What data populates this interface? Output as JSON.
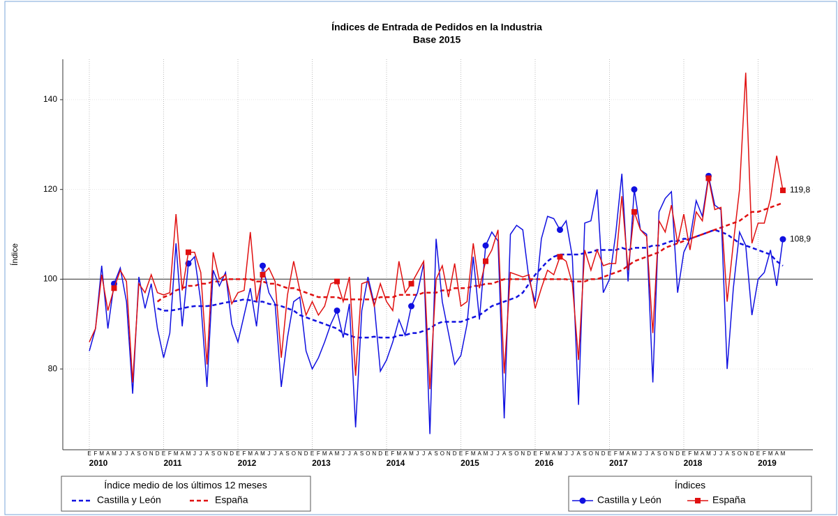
{
  "chart_data": {
    "type": "line",
    "title": "Índices de Entrada de Pedidos en la Industria",
    "subtitle": "Base 2015",
    "ylabel": "Índice",
    "ylim": [
      62,
      149
    ],
    "yticks": [
      80,
      100,
      120,
      140
    ],
    "reference_line": 100,
    "grid": true,
    "categories": [
      "E",
      "F",
      "M",
      "A",
      "M",
      "J",
      "J",
      "A",
      "S",
      "O",
      "N",
      "D",
      "E",
      "F",
      "M",
      "A",
      "M",
      "J",
      "J",
      "A",
      "S",
      "O",
      "N",
      "D",
      "E",
      "F",
      "M",
      "A",
      "M",
      "J",
      "J",
      "A",
      "S",
      "O",
      "N",
      "D",
      "E",
      "F",
      "M",
      "A",
      "M",
      "J",
      "J",
      "A",
      "S",
      "O",
      "N",
      "D",
      "E",
      "F",
      "M",
      "A",
      "M",
      "J",
      "J",
      "A",
      "S",
      "O",
      "N",
      "D",
      "E",
      "F",
      "M",
      "A",
      "M",
      "J",
      "J",
      "A",
      "S",
      "O",
      "N",
      "D",
      "E",
      "F",
      "M",
      "A",
      "M",
      "J",
      "J",
      "A",
      "S",
      "O",
      "N",
      "D",
      "E",
      "F",
      "M",
      "A",
      "M",
      "J",
      "J",
      "A",
      "S",
      "O",
      "N",
      "D",
      "E",
      "F",
      "M",
      "A",
      "M",
      "J",
      "J",
      "A",
      "S",
      "O",
      "N",
      "D",
      "E",
      "F",
      "M",
      "A",
      "M"
    ],
    "years": [
      "2010",
      "2011",
      "2012",
      "2013",
      "2014",
      "2015",
      "2016",
      "2017",
      "2018",
      "2019"
    ],
    "legend_title": "Índices",
    "series": [
      {
        "name": "Castilla y León",
        "color": "#1010e0",
        "marker": "circle",
        "values": [
          84,
          89,
          103,
          89,
          99,
          102.5,
          95,
          74.5,
          100.5,
          93.5,
          99,
          89,
          82.5,
          88,
          108,
          89.5,
          103.5,
          105,
          95,
          76,
          102,
          98.5,
          101.5,
          90,
          86,
          92,
          98,
          89.5,
          103,
          97,
          94.5,
          76,
          87,
          95,
          96,
          84,
          80,
          82.5,
          86,
          90,
          93,
          87,
          94.5,
          67,
          93,
          100.5,
          94.5,
          79.5,
          82,
          86,
          91,
          87.5,
          94,
          97,
          103.5,
          65.5,
          109,
          95,
          88,
          81,
          83,
          90,
          105,
          91,
          107.5,
          110.5,
          108.5,
          69,
          110,
          112,
          111,
          100,
          95,
          109,
          114,
          113.5,
          111,
          113,
          105,
          72,
          112.5,
          113,
          120,
          97,
          100,
          110,
          123.5,
          99.5,
          120,
          111,
          110,
          77,
          115,
          118,
          119.5,
          97,
          106,
          109,
          117.5,
          114,
          123,
          116.5,
          115.5,
          80,
          98,
          110.5,
          107.5,
          92,
          100,
          101.5,
          106.5,
          98.5,
          108.9
        ],
        "value_labels": [
          null,
          null,
          null,
          null,
          null,
          null,
          null,
          null,
          null,
          null,
          null,
          null,
          null,
          null,
          null,
          null,
          null,
          null,
          null,
          null,
          null,
          null,
          null,
          null,
          null,
          null,
          null,
          null,
          null,
          null,
          null,
          null,
          null,
          null,
          null,
          null,
          null,
          null,
          null,
          null,
          null,
          null,
          null,
          null,
          null,
          null,
          null,
          null,
          null,
          null,
          null,
          null,
          null,
          null,
          null,
          null,
          null,
          null,
          null,
          null,
          null,
          null,
          null,
          null,
          null,
          null,
          null,
          null,
          null,
          null,
          null,
          null,
          null,
          null,
          null,
          null,
          null,
          null,
          null,
          null,
          null,
          null,
          null,
          null,
          null,
          null,
          null,
          null,
          null,
          null,
          null,
          null,
          null,
          null,
          null,
          null,
          null,
          null,
          null,
          null,
          null,
          null,
          null,
          null,
          null,
          null,
          null,
          null,
          null,
          null,
          null,
          null,
          "108,9"
        ]
      },
      {
        "name": "España",
        "color": "#e01010",
        "marker": "square",
        "values": [
          86,
          89,
          101,
          93,
          98,
          102,
          99.5,
          77,
          99,
          97,
          101,
          97,
          96.5,
          97,
          114.5,
          97.5,
          106,
          106,
          101.5,
          81,
          106,
          100,
          101,
          94.5,
          97,
          97.5,
          110.5,
          95,
          101,
          102.5,
          99.5,
          82.5,
          96.5,
          104,
          97.5,
          92,
          95,
          92,
          94,
          99,
          99.5,
          95,
          100.5,
          78.5,
          99,
          99.5,
          94,
          99,
          95,
          93,
          104,
          97,
          99,
          101.5,
          104,
          75.5,
          100,
          103,
          96,
          103.5,
          94,
          95,
          108,
          98,
          104,
          106.5,
          111,
          79,
          101.5,
          101,
          100.5,
          101,
          93.5,
          98,
          102,
          101,
          105,
          104,
          99,
          82,
          106.5,
          102,
          106.5,
          103,
          103.5,
          103.5,
          118.5,
          102,
          115,
          111,
          109.5,
          88,
          113,
          110.5,
          116.5,
          108,
          114.5,
          106.5,
          115,
          113,
          122.5,
          115.5,
          116,
          95,
          108,
          120,
          146,
          108,
          112.5,
          112.5,
          118,
          127.5,
          119.8
        ],
        "value_labels": [
          null,
          null,
          null,
          null,
          null,
          null,
          null,
          null,
          null,
          null,
          null,
          null,
          null,
          null,
          null,
          null,
          null,
          null,
          null,
          null,
          null,
          null,
          null,
          null,
          null,
          null,
          null,
          null,
          null,
          null,
          null,
          null,
          null,
          null,
          null,
          null,
          null,
          null,
          null,
          null,
          null,
          null,
          null,
          null,
          null,
          null,
          null,
          null,
          null,
          null,
          null,
          null,
          null,
          null,
          null,
          null,
          null,
          null,
          null,
          null,
          null,
          null,
          null,
          null,
          null,
          null,
          null,
          null,
          null,
          null,
          null,
          null,
          null,
          null,
          null,
          null,
          null,
          null,
          null,
          null,
          null,
          null,
          null,
          null,
          null,
          null,
          null,
          null,
          null,
          null,
          null,
          null,
          null,
          null,
          null,
          null,
          null,
          null,
          null,
          null,
          null,
          null,
          null,
          null,
          null,
          null,
          null,
          null,
          null,
          null,
          null,
          null,
          "119,8"
        ]
      }
    ],
    "average": {
      "legend_title": "Índice medio de los últimos 12 meses",
      "series": [
        {
          "name": "Castilla y León",
          "color": "#1010e0",
          "values": [
            null,
            null,
            null,
            null,
            null,
            null,
            null,
            null,
            null,
            null,
            null,
            93.5,
            93,
            93,
            93.2,
            93.5,
            93.8,
            94,
            94,
            94,
            94.2,
            94.5,
            94.8,
            95,
            95.2,
            95.5,
            95.3,
            95,
            95,
            94.5,
            94.3,
            94,
            93.5,
            93,
            92,
            91.5,
            91,
            90.5,
            90,
            89.5,
            89,
            88,
            87.5,
            87,
            87,
            87,
            87.2,
            87,
            87,
            87,
            87.5,
            87.5,
            88,
            88,
            88.5,
            89,
            90,
            90.5,
            90.5,
            90.5,
            90.5,
            91,
            91.5,
            92,
            93,
            94,
            94.5,
            95,
            95.5,
            96,
            97,
            99,
            101,
            102.5,
            104,
            105,
            105.5,
            105.5,
            105.5,
            105.5,
            105.8,
            106,
            106.5,
            106.5,
            106.5,
            106.5,
            107,
            106.5,
            107,
            107,
            107,
            107.5,
            107.5,
            108,
            108.5,
            108.5,
            109,
            109,
            109.5,
            110,
            110.5,
            111,
            110.5,
            110,
            109,
            108,
            107.5,
            107,
            106.5,
            106,
            105.5,
            104,
            103
          ]
        },
        {
          "name": "España",
          "color": "#e01010",
          "values": [
            null,
            null,
            null,
            null,
            null,
            null,
            null,
            null,
            null,
            null,
            null,
            95,
            96,
            96.5,
            97.5,
            98,
            98.5,
            98.5,
            99,
            99,
            99.5,
            99.5,
            100,
            100,
            100,
            100,
            100,
            99.5,
            99.5,
            99,
            99,
            98.5,
            98,
            98,
            97.5,
            97,
            96.5,
            96,
            96,
            96,
            96,
            95.5,
            95.5,
            95.5,
            95.5,
            95.5,
            95.5,
            96,
            96,
            96,
            96.5,
            96.5,
            96.5,
            96.5,
            97,
            97,
            97,
            97.5,
            97.5,
            98,
            98,
            98,
            98.5,
            98.5,
            99,
            99,
            99.5,
            100,
            100,
            100,
            100,
            100,
            100,
            100,
            100,
            100,
            100,
            100,
            99.5,
            99.5,
            99.5,
            100,
            100,
            100.5,
            101,
            101.5,
            102,
            103,
            104,
            104.5,
            105,
            105.5,
            106,
            107,
            107.5,
            108,
            108.5,
            109,
            109.5,
            110,
            110.5,
            111,
            111.5,
            112,
            112.5,
            113,
            114,
            115,
            115,
            115.5,
            116,
            116.5,
            117
          ]
        }
      ]
    }
  }
}
